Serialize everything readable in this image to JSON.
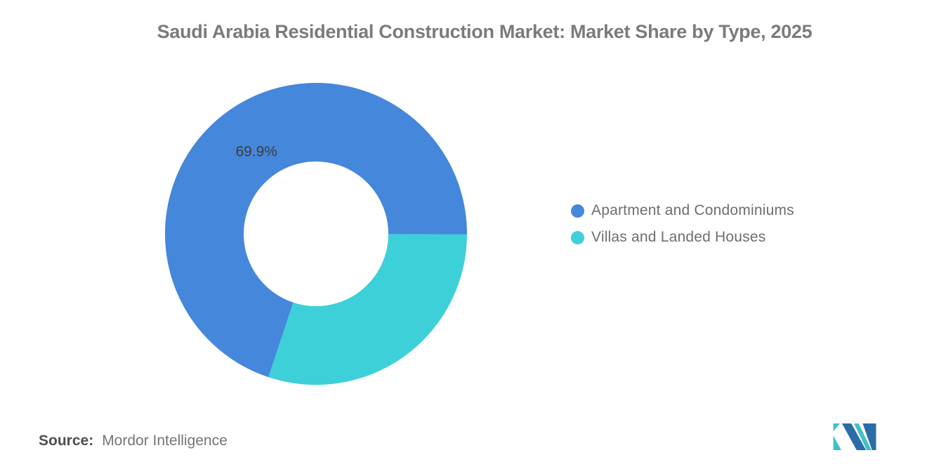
{
  "chart_data": {
    "type": "pie",
    "subtype": "donut",
    "title": "Saudi Arabia Residential Construction Market: Market Share by Type, 2025",
    "unit": "%",
    "series": [
      {
        "name": "Apartment and Condominiums",
        "value": 69.9,
        "color": "#4587DB"
      },
      {
        "name": "Villas and Landed Houses",
        "value": 30.1,
        "color": "#3ED0D9"
      }
    ],
    "label": "69.9%",
    "labeled_series": "Apartment and Condominiums",
    "start_angle_deg": 108.4,
    "direction": "clockwise",
    "inner_radius_ratio": 0.48,
    "legend_position": "right",
    "grid": false
  },
  "source": {
    "prefix": "Source:",
    "text": "Mordor Intelligence"
  },
  "branding": {
    "logo": "mordor-intelligence-logo",
    "colors": {
      "blue": "#2B6CA9",
      "teal": "#41C0C9"
    }
  }
}
